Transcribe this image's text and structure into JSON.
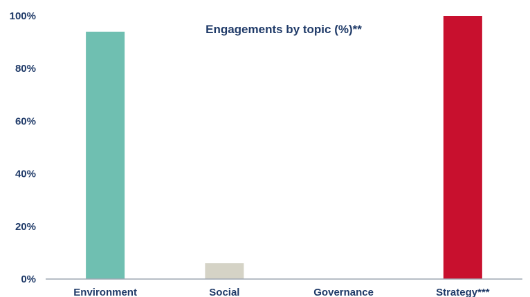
{
  "chart_data": {
    "type": "bar",
    "title": "Engagements by topic (%)**",
    "xlabel": "",
    "ylabel": "",
    "categories": [
      "Environment",
      "Social",
      "Governance",
      "Strategy***"
    ],
    "values": [
      94,
      6,
      0,
      100
    ],
    "bar_colors": [
      "#6fbfb1",
      "#d5d3c6",
      "#d5d3c6",
      "#c8102e"
    ],
    "ylim": [
      0,
      100
    ],
    "yticks": [
      0,
      20,
      40,
      60,
      80,
      100
    ],
    "ytick_labels": [
      "0%",
      "20%",
      "40%",
      "60%",
      "80%",
      "100%"
    ],
    "grid": false,
    "legend": "none",
    "text_color": "#1f3a68",
    "axis_color": "#9ea7b3"
  }
}
